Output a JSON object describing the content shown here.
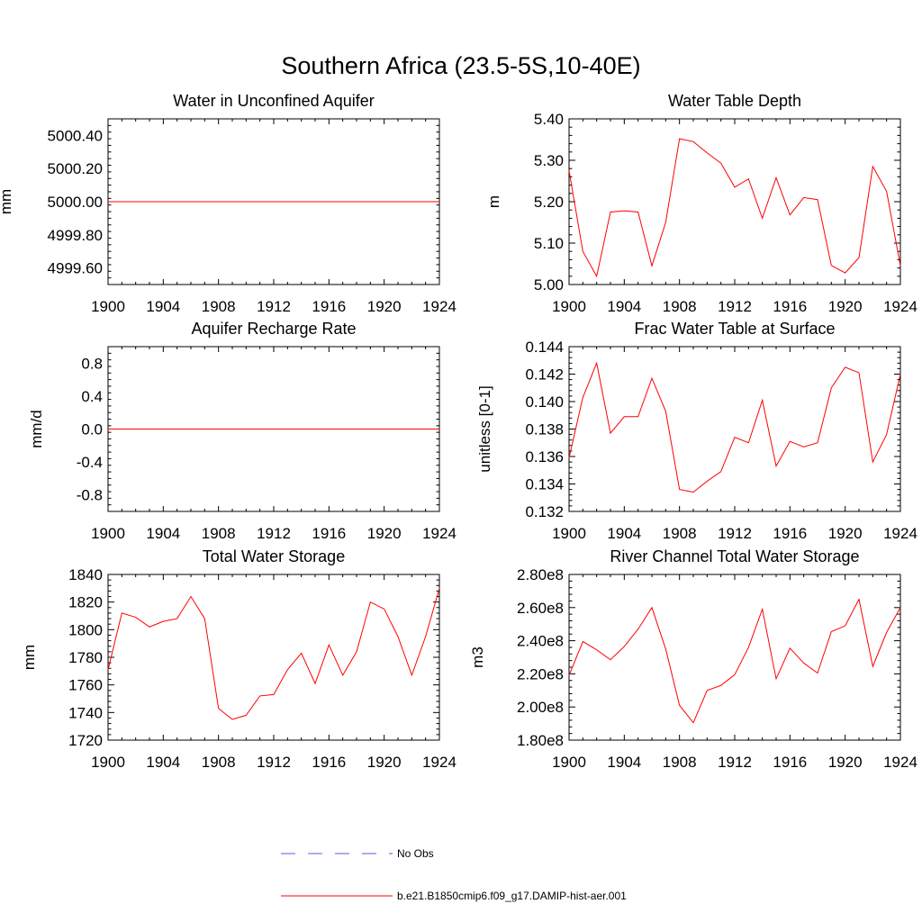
{
  "title": "Southern Africa (23.5-5S,10-40E)",
  "colors": {
    "model": "#ff0000",
    "obs": "#5b5bd6",
    "axis": "#000000"
  },
  "legend": {
    "items": [
      {
        "label": "No Obs",
        "style": "dashed",
        "color": "#5b5bd6"
      },
      {
        "label": "b.e21.B1850cmip6.f09_g17.DAMIP-hist-aer.001",
        "style": "solid",
        "color": "#ff0000"
      }
    ]
  },
  "chart_data": [
    {
      "type": "line",
      "title": "Water in Unconfined Aquifer",
      "ylabel": "mm",
      "xlim": [
        1900,
        1924
      ],
      "ylim": [
        4999.5,
        5000.5
      ],
      "xticks": [
        1900,
        1904,
        1908,
        1912,
        1916,
        1920,
        1924
      ],
      "yticks": [
        4999.6,
        4999.8,
        5000.0,
        5000.2,
        5000.4
      ],
      "ytick_labels": [
        "4999.60",
        "4999.80",
        "5000.00",
        "5000.20",
        "5000.40"
      ],
      "x": [
        1900,
        1901,
        1902,
        1903,
        1904,
        1905,
        1906,
        1907,
        1908,
        1909,
        1910,
        1911,
        1912,
        1913,
        1914,
        1915,
        1916,
        1917,
        1918,
        1919,
        1920,
        1921,
        1922,
        1923,
        1924
      ],
      "series": [
        {
          "values": [
            5000.0,
            5000.0,
            5000.0,
            5000.0,
            5000.0,
            5000.0,
            5000.0,
            5000.0,
            5000.0,
            5000.0,
            5000.0,
            5000.0,
            5000.0,
            5000.0,
            5000.0,
            5000.0,
            5000.0,
            5000.0,
            5000.0,
            5000.0,
            5000.0,
            5000.0,
            5000.0,
            5000.0,
            5000.0
          ]
        }
      ]
    },
    {
      "type": "line",
      "title": "Water Table Depth",
      "ylabel": "m",
      "xlim": [
        1900,
        1924
      ],
      "ylim": [
        5.0,
        5.4
      ],
      "xticks": [
        1900,
        1904,
        1908,
        1912,
        1916,
        1920,
        1924
      ],
      "yticks": [
        5.0,
        5.1,
        5.2,
        5.3,
        5.4
      ],
      "ytick_labels": [
        "5.00",
        "5.10",
        "5.20",
        "5.30",
        "5.40"
      ],
      "x": [
        1900,
        1901,
        1902,
        1903,
        1904,
        1905,
        1906,
        1907,
        1908,
        1909,
        1910,
        1911,
        1912,
        1913,
        1914,
        1915,
        1916,
        1917,
        1918,
        1919,
        1920,
        1921,
        1922,
        1923,
        1924
      ],
      "series": [
        {
          "values": [
            5.275,
            5.08,
            5.02,
            5.175,
            5.178,
            5.175,
            5.045,
            5.15,
            5.352,
            5.345,
            5.318,
            5.293,
            5.235,
            5.255,
            5.16,
            5.258,
            5.168,
            5.21,
            5.205,
            5.046,
            5.028,
            5.065,
            5.285,
            5.225,
            5.045
          ]
        }
      ]
    },
    {
      "type": "line",
      "title": "Aquifer Recharge Rate",
      "ylabel": "mm/d",
      "xlim": [
        1900,
        1924
      ],
      "ylim": [
        -1.0,
        1.0
      ],
      "xticks": [
        1900,
        1904,
        1908,
        1912,
        1916,
        1920,
        1924
      ],
      "yticks": [
        -0.8,
        -0.4,
        0.0,
        0.4,
        0.8
      ],
      "ytick_labels": [
        "-0.8",
        "-0.4",
        "0.0",
        "0.4",
        "0.8"
      ],
      "x": [
        1900,
        1901,
        1902,
        1903,
        1904,
        1905,
        1906,
        1907,
        1908,
        1909,
        1910,
        1911,
        1912,
        1913,
        1914,
        1915,
        1916,
        1917,
        1918,
        1919,
        1920,
        1921,
        1922,
        1923,
        1924
      ],
      "series": [
        {
          "values": [
            0,
            0,
            0,
            0,
            0,
            0,
            0,
            0,
            0,
            0,
            0,
            0,
            0,
            0,
            0,
            0,
            0,
            0,
            0,
            0,
            0,
            0,
            0,
            0,
            0
          ]
        }
      ]
    },
    {
      "type": "line",
      "title": "Frac Water Table at Surface",
      "ylabel": "unitless [0-1]",
      "xlim": [
        1900,
        1924
      ],
      "ylim": [
        0.132,
        0.144
      ],
      "xticks": [
        1900,
        1904,
        1908,
        1912,
        1916,
        1920,
        1924
      ],
      "yticks": [
        0.132,
        0.134,
        0.136,
        0.138,
        0.14,
        0.142,
        0.144
      ],
      "ytick_labels": [
        "0.132",
        "0.134",
        "0.136",
        "0.138",
        "0.140",
        "0.142",
        "0.144"
      ],
      "x": [
        1900,
        1901,
        1902,
        1903,
        1904,
        1905,
        1906,
        1907,
        1908,
        1909,
        1910,
        1911,
        1912,
        1913,
        1914,
        1915,
        1916,
        1917,
        1918,
        1919,
        1920,
        1921,
        1922,
        1923,
        1924
      ],
      "series": [
        {
          "values": [
            0.1359,
            0.1403,
            0.1428,
            0.1377,
            0.1389,
            0.1389,
            0.1417,
            0.1393,
            0.1336,
            0.1334,
            0.1342,
            0.1349,
            0.1374,
            0.137,
            0.1401,
            0.1353,
            0.1371,
            0.1367,
            0.137,
            0.141,
            0.1425,
            0.1421,
            0.1356,
            0.1376,
            0.142
          ]
        }
      ]
    },
    {
      "type": "line",
      "title": "Total Water Storage",
      "ylabel": "mm",
      "xlim": [
        1900,
        1924
      ],
      "ylim": [
        1720,
        1840
      ],
      "xticks": [
        1900,
        1904,
        1908,
        1912,
        1916,
        1920,
        1924
      ],
      "yticks": [
        1720,
        1740,
        1760,
        1780,
        1800,
        1820,
        1840
      ],
      "ytick_labels": [
        "1720",
        "1740",
        "1760",
        "1780",
        "1800",
        "1820",
        "1840"
      ],
      "x": [
        1900,
        1901,
        1902,
        1903,
        1904,
        1905,
        1906,
        1907,
        1908,
        1909,
        1910,
        1911,
        1912,
        1913,
        1914,
        1915,
        1916,
        1917,
        1918,
        1919,
        1920,
        1921,
        1922,
        1923,
        1924
      ],
      "series": [
        {
          "values": [
            1771,
            1812,
            1809,
            1802,
            1806,
            1808,
            1824,
            1808,
            1743,
            1735,
            1738,
            1752,
            1753,
            1771,
            1783,
            1761,
            1789,
            1767,
            1784,
            1820,
            1815,
            1795,
            1767,
            1795,
            1830
          ]
        }
      ]
    },
    {
      "type": "line",
      "title": "River Channel Total Water Storage",
      "ylabel": "m3",
      "xlim": [
        1900,
        1924
      ],
      "ylim": [
        180000000,
        280000000
      ],
      "xticks": [
        1900,
        1904,
        1908,
        1912,
        1916,
        1920,
        1924
      ],
      "yticks": [
        180000000,
        200000000,
        220000000,
        240000000,
        260000000,
        280000000
      ],
      "ytick_labels": [
        "1.80e8",
        "2.00e8",
        "2.20e8",
        "2.40e8",
        "2.60e8",
        "2.80e8"
      ],
      "x": [
        1900,
        1901,
        1902,
        1903,
        1904,
        1905,
        1906,
        1907,
        1908,
        1909,
        1910,
        1911,
        1912,
        1913,
        1914,
        1915,
        1916,
        1917,
        1918,
        1919,
        1920,
        1921,
        1922,
        1923,
        1924
      ],
      "series": [
        {
          "values": [
            219000000,
            239500000,
            234500000,
            228500000,
            236500000,
            247000000,
            260000000,
            235000000,
            201000000,
            190500000,
            210000000,
            213000000,
            219500000,
            236000000,
            259000000,
            217000000,
            235500000,
            226500000,
            220500000,
            245500000,
            249000000,
            265000000,
            224500000,
            245000000,
            260000000
          ]
        }
      ]
    }
  ]
}
